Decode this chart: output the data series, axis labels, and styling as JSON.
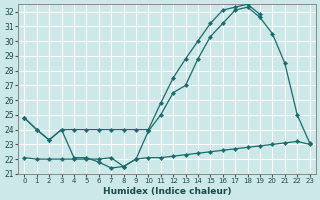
{
  "xlabel": "Humidex (Indice chaleur)",
  "background_color": "#cce8e8",
  "grid_color": "#b8d8d8",
  "line_color": "#1a6b6b",
  "ylim": [
    21,
    32.5
  ],
  "xlim": [
    -0.5,
    23.5
  ],
  "yticks": [
    21,
    22,
    23,
    24,
    25,
    26,
    27,
    28,
    29,
    30,
    31,
    32
  ],
  "xticks": [
    0,
    1,
    2,
    3,
    4,
    5,
    6,
    7,
    8,
    9,
    10,
    11,
    12,
    13,
    14,
    15,
    16,
    17,
    18,
    19,
    20,
    21,
    22,
    23
  ],
  "line1_x": [
    0,
    1,
    2,
    3,
    4,
    5,
    6,
    7,
    8,
    9,
    10,
    11,
    12,
    13,
    14,
    15,
    16,
    17,
    18,
    19,
    20,
    21,
    22,
    23
  ],
  "line1_y": [
    24.8,
    24.0,
    23.3,
    24.0,
    22.1,
    22.1,
    21.8,
    21.4,
    21.5,
    22.0,
    23.9,
    25.0,
    26.5,
    27.0,
    28.8,
    30.3,
    31.2,
    32.1,
    32.3,
    31.6,
    30.5,
    28.5,
    25.0,
    23.1
  ],
  "line2_x": [
    0,
    1,
    2,
    3,
    4,
    5,
    6,
    7,
    8,
    9,
    10,
    11,
    12,
    13,
    14,
    15,
    16,
    17,
    18,
    19
  ],
  "line2_y": [
    24.8,
    24.0,
    23.3,
    24.0,
    24.0,
    24.0,
    24.0,
    24.0,
    24.0,
    24.0,
    24.0,
    25.8,
    27.5,
    28.8,
    30.0,
    31.2,
    32.1,
    32.3,
    32.5,
    31.8
  ],
  "line3_x": [
    0,
    1,
    2,
    3,
    4,
    5,
    6,
    7,
    8,
    9,
    10,
    11,
    12,
    13,
    14,
    15,
    16,
    17,
    18,
    19,
    20,
    21,
    22,
    23
  ],
  "line3_y": [
    22.1,
    22.0,
    22.0,
    22.0,
    22.0,
    22.0,
    22.0,
    22.1,
    21.5,
    22.0,
    22.1,
    22.1,
    22.2,
    22.3,
    22.4,
    22.5,
    22.6,
    22.7,
    22.8,
    22.9,
    23.0,
    23.1,
    23.2,
    23.0
  ]
}
